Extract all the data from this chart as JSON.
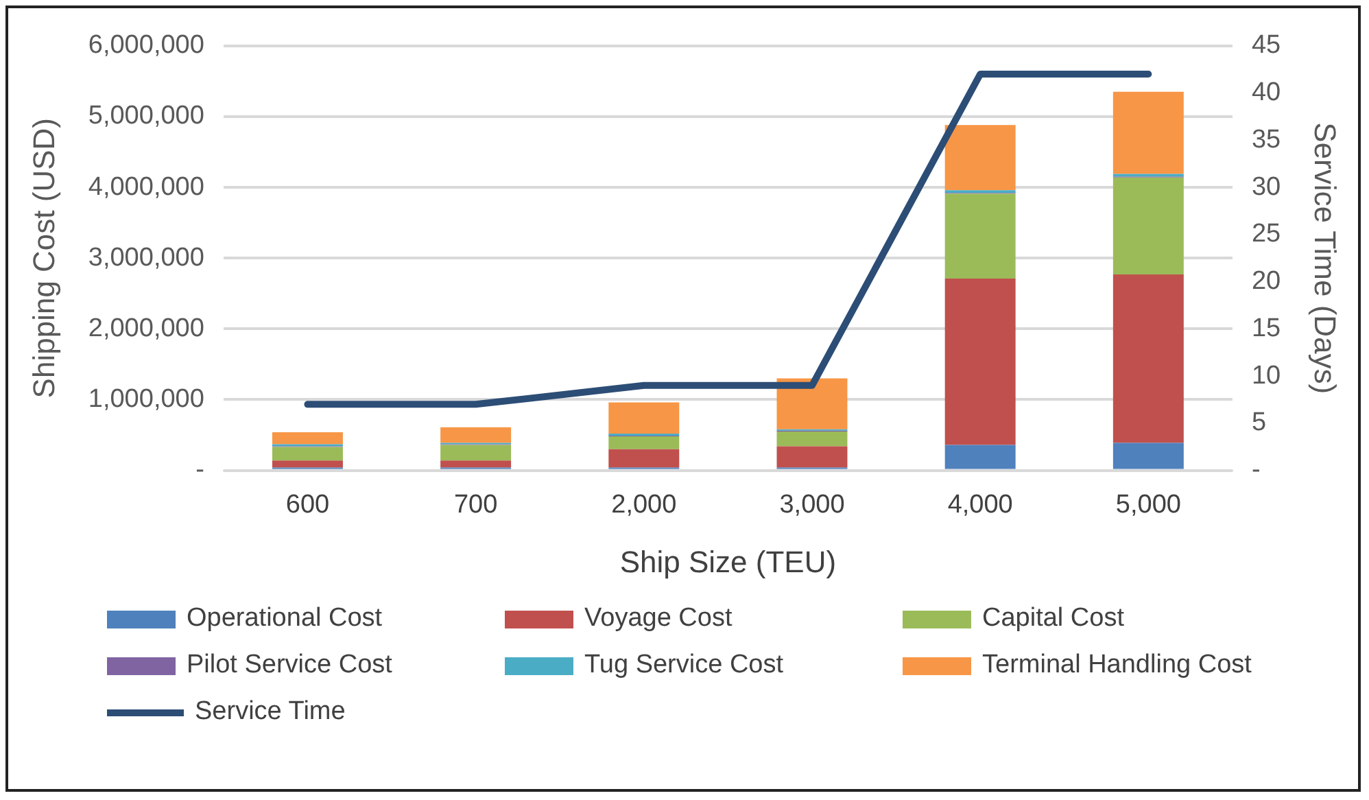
{
  "chart_data": {
    "type": "bar",
    "stacked": true,
    "xlabel": "Ship Size (TEU)",
    "ylabel": "Shipping Cost (USD)",
    "y2label": "Service Time (Days)",
    "categories": [
      "600",
      "700",
      "2,000",
      "3,000",
      "4,000",
      "5,000"
    ],
    "series": [
      {
        "name": "Operational Cost",
        "color": "#4f81bd",
        "values": [
          40000,
          40000,
          40000,
          40000,
          360000,
          390000
        ]
      },
      {
        "name": "Voyage Cost",
        "color": "#c0504d",
        "values": [
          100000,
          100000,
          260000,
          300000,
          2350000,
          2380000
        ]
      },
      {
        "name": "Capital Cost",
        "color": "#9bbb59",
        "values": [
          190000,
          220000,
          180000,
          210000,
          1200000,
          1370000
        ]
      },
      {
        "name": "Pilot Service Cost",
        "color": "#8064a2",
        "values": [
          10000,
          10000,
          10000,
          10000,
          10000,
          10000
        ]
      },
      {
        "name": "Tug Service Cost",
        "color": "#4bacc6",
        "values": [
          30000,
          20000,
          30000,
          20000,
          40000,
          40000
        ]
      },
      {
        "name": "Terminal Handling Cost",
        "color": "#f79646",
        "values": [
          170000,
          220000,
          440000,
          720000,
          920000,
          1160000
        ]
      },
      {
        "name": "Service Time",
        "type": "line",
        "axis": "y2",
        "color": "#2c4d75",
        "values": [
          7,
          7,
          9,
          9,
          42,
          42
        ]
      }
    ],
    "ylim": [
      0,
      6000000
    ],
    "yticks": [
      {
        "value": 0,
        "label": "-"
      },
      {
        "value": 1000000,
        "label": "1,000,000"
      },
      {
        "value": 2000000,
        "label": "2,000,000"
      },
      {
        "value": 3000000,
        "label": "3,000,000"
      },
      {
        "value": 4000000,
        "label": "4,000,000"
      },
      {
        "value": 5000000,
        "label": "5,000,000"
      },
      {
        "value": 6000000,
        "label": "6,000,000"
      }
    ],
    "y2lim": [
      0,
      45
    ],
    "y2ticks": [
      {
        "value": 0,
        "label": "-"
      },
      5,
      10,
      15,
      20,
      25,
      30,
      35,
      40,
      45
    ],
    "grid": "y",
    "legend": "bottom",
    "marker": "none"
  }
}
